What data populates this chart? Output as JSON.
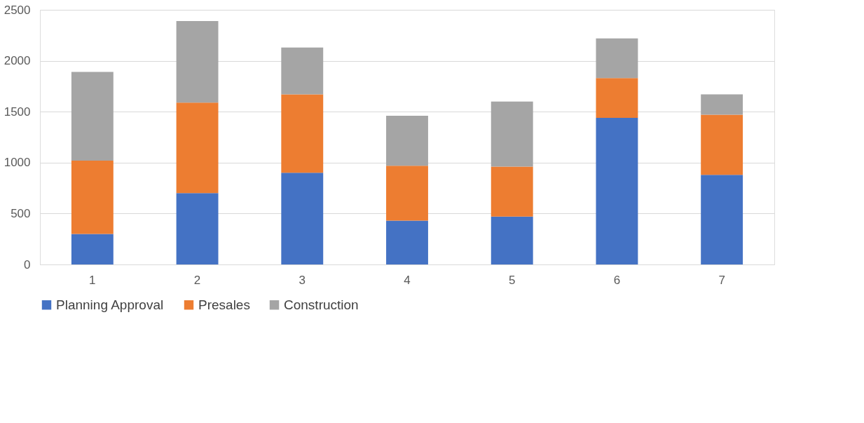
{
  "chart_data": {
    "type": "bar",
    "stacked": true,
    "categories": [
      "1",
      "2",
      "3",
      "4",
      "5",
      "6",
      "7"
    ],
    "series": [
      {
        "name": "Planning Approval",
        "color": "#4472c4",
        "values": [
          300,
          700,
          900,
          430,
          470,
          1440,
          880
        ]
      },
      {
        "name": "Presales",
        "color": "#ed7d31",
        "values": [
          720,
          890,
          770,
          540,
          490,
          390,
          590
        ]
      },
      {
        "name": "Construction",
        "color": "#a5a5a5",
        "values": [
          870,
          800,
          460,
          490,
          640,
          390,
          200
        ]
      }
    ],
    "ylim": [
      0,
      2500
    ],
    "yticks": [
      0,
      500,
      1000,
      1500,
      2000,
      2500
    ],
    "grid": "y",
    "legend": "bottom"
  }
}
